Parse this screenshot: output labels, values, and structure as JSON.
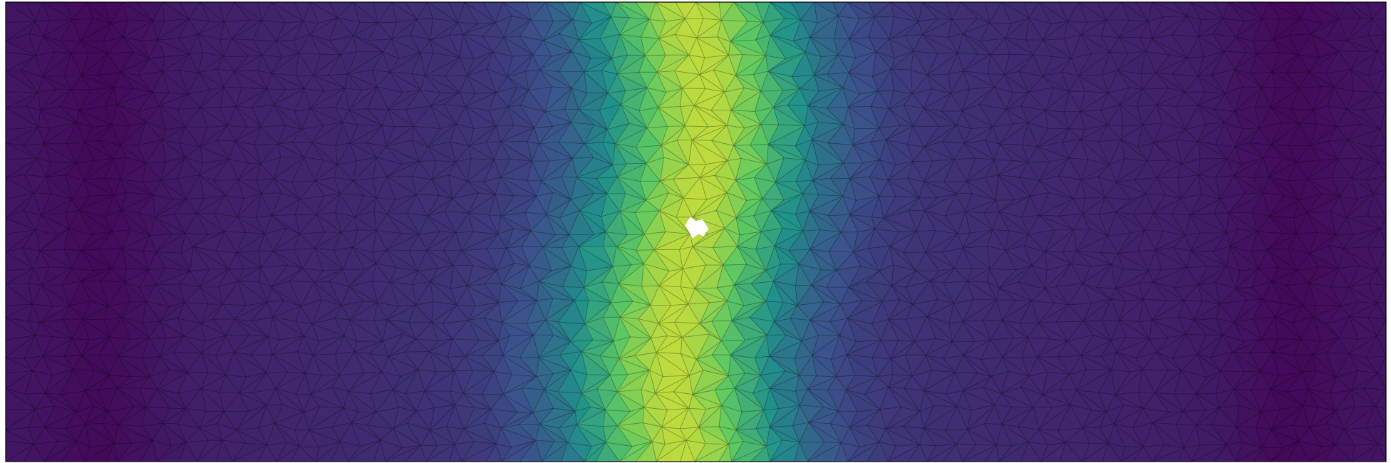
{
  "figure": {
    "kind": "triangular-mesh-scalar-field",
    "colormap": "viridis",
    "colormap_stops": [
      "#440154",
      "#3b528b",
      "#21918c",
      "#5ec962",
      "#fde725"
    ],
    "background": "#ffffff",
    "mesh_edge_color": "#000000",
    "frame_color": "#000000",
    "hole_color": "#ffffff",
    "field": {
      "description_shape": "vertical band peaking near center, lowest near both ends",
      "peak_position_fraction": 0.5,
      "left_trough_fraction": 0.07,
      "right_trough_fraction": 0.93
    },
    "hole": {
      "shape": "small irregular void at band center"
    }
  }
}
